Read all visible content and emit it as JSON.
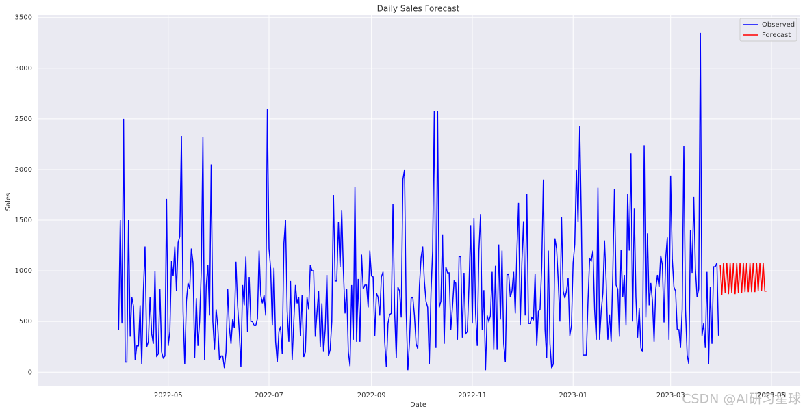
{
  "chart_data": {
    "type": "line",
    "title": "Daily Sales Forecast",
    "x_label": "Date",
    "y_label": "Sales",
    "xlim": [
      -49,
      412
    ],
    "ylim": [
      -140,
      3525
    ],
    "grid": true,
    "legend": "upper right",
    "xticks": [
      {
        "value": 30,
        "label": "2022-05"
      },
      {
        "value": 91,
        "label": "2022-07"
      },
      {
        "value": 153,
        "label": "2022-09"
      },
      {
        "value": 214,
        "label": "2022-11"
      },
      {
        "value": 275,
        "label": "2023-01"
      },
      {
        "value": 334,
        "label": "2023-03"
      },
      {
        "value": 395,
        "label": "2023-05"
      }
    ],
    "yticks": [
      0,
      500,
      1000,
      1500,
      2000,
      2500,
      3000,
      3500
    ],
    "series": [
      {
        "name": "Observed",
        "color": "#0000ff",
        "x": [
          0,
          1,
          2,
          3,
          4,
          5,
          6,
          7,
          8,
          9,
          10,
          11,
          12,
          13,
          14,
          15,
          16,
          17,
          18,
          19,
          20,
          21,
          22,
          23,
          24,
          25,
          26,
          27,
          28,
          29,
          30,
          31,
          32,
          33,
          34,
          35,
          36,
          37,
          38,
          39,
          40,
          41,
          42,
          43,
          44,
          45,
          46,
          47,
          48,
          49,
          50,
          51,
          52,
          53,
          54,
          55,
          56,
          57,
          58,
          59,
          60,
          61,
          62,
          63,
          64,
          65,
          66,
          67,
          68,
          69,
          70,
          71,
          72,
          73,
          74,
          75,
          76,
          77,
          78,
          79,
          80,
          81,
          82,
          83,
          84,
          85,
          86,
          87,
          88,
          89,
          90,
          91,
          92,
          93,
          94,
          95,
          96,
          97,
          98,
          99,
          100,
          101,
          102,
          103,
          104,
          105,
          106,
          107,
          108,
          109,
          110,
          111,
          112,
          113,
          114,
          115,
          116,
          117,
          118,
          119,
          120,
          121,
          122,
          123,
          124,
          125,
          126,
          127,
          128,
          129,
          130,
          131,
          132,
          133,
          134,
          135,
          136,
          137,
          138,
          139,
          140,
          141,
          142,
          143,
          144,
          145,
          146,
          147,
          148,
          149,
          150,
          151,
          152,
          153,
          154,
          155,
          156,
          157,
          158,
          159,
          160,
          161,
          162,
          163,
          164,
          165,
          166,
          167,
          168,
          169,
          170,
          171,
          172,
          173,
          174,
          175,
          176,
          177,
          178,
          179,
          180,
          181,
          182,
          183,
          184,
          185,
          186,
          187,
          188,
          189,
          190,
          191,
          192,
          193,
          194,
          195,
          196,
          197,
          198,
          199,
          200,
          201,
          202,
          203,
          204,
          205,
          206,
          207,
          208,
          209,
          210,
          211,
          212,
          213,
          214,
          215,
          216,
          217,
          218,
          219,
          220,
          221,
          222,
          223,
          224,
          225,
          226,
          227,
          228,
          229,
          230,
          231,
          232,
          233,
          234,
          235,
          236,
          237,
          238,
          239,
          240,
          241,
          242,
          243,
          244,
          245,
          246,
          247,
          248,
          249,
          250,
          251,
          252,
          253,
          254,
          255,
          256,
          257,
          258,
          259,
          260,
          261,
          262,
          263,
          264,
          265,
          266,
          267,
          268,
          269,
          270,
          271,
          272,
          273,
          274,
          275,
          276,
          277,
          278,
          279,
          280,
          281,
          282,
          283,
          284,
          285,
          286,
          287,
          288,
          289,
          290,
          291,
          292,
          293,
          294,
          295,
          296,
          297,
          298,
          299,
          300,
          301,
          302,
          303,
          304,
          305,
          306,
          307,
          308,
          309,
          310,
          311,
          312,
          313,
          314,
          315,
          316,
          317,
          318,
          319,
          320,
          321,
          322,
          323,
          324,
          325,
          326,
          327,
          328,
          329,
          330,
          331,
          332,
          333,
          334,
          335,
          336,
          337,
          338,
          339,
          340,
          341,
          342,
          343,
          344,
          345,
          346,
          347,
          348,
          349,
          350,
          351,
          352,
          353,
          354,
          355,
          356,
          357,
          358,
          359,
          360,
          361,
          362,
          363
        ],
        "values": [
          420,
          1500,
          480,
          2500,
          100,
          100,
          1500,
          350,
          740,
          650,
          120,
          260,
          260,
          660,
          80,
          800,
          1240,
          250,
          300,
          740,
          380,
          280,
          1000,
          160,
          180,
          820,
          200,
          140,
          160,
          1710,
          260,
          400,
          1100,
          950,
          1240,
          800,
          1280,
          1340,
          2330,
          600,
          80,
          700,
          880,
          820,
          1220,
          1080,
          140,
          730,
          260,
          500,
          1000,
          2320,
          120,
          850,
          1060,
          560,
          2050,
          500,
          220,
          620,
          450,
          120,
          160,
          160,
          40,
          200,
          820,
          440,
          280,
          520,
          440,
          1090,
          660,
          400,
          50,
          860,
          660,
          1140,
          400,
          940,
          500,
          500,
          460,
          460,
          530,
          1200,
          760,
          680,
          760,
          560,
          2600,
          1220,
          1020,
          460,
          1030,
          300,
          100,
          400,
          450,
          180,
          1270,
          1500,
          600,
          300,
          900,
          120,
          500,
          860,
          680,
          740,
          360,
          760,
          150,
          200,
          740,
          620,
          1060,
          1000,
          1000,
          350,
          580,
          800,
          250,
          680,
          200,
          420,
          960,
          160,
          220,
          500,
          1750,
          900,
          900,
          1480,
          1040,
          1600,
          1000,
          580,
          820,
          200,
          60,
          860,
          320,
          1830,
          300,
          920,
          300,
          1160,
          820,
          860,
          860,
          640,
          1200,
          950,
          940,
          360,
          780,
          740,
          560,
          940,
          990,
          300,
          50,
          480,
          570,
          580,
          1660,
          600,
          140,
          840,
          800,
          540,
          1900,
          2000,
          600,
          20,
          300,
          730,
          740,
          560,
          280,
          230,
          850,
          1130,
          1240,
          900,
          700,
          640,
          80,
          780,
          1200,
          2580,
          240,
          2580,
          640,
          700,
          1360,
          280,
          1040,
          980,
          980,
          420,
          640,
          900,
          880,
          320,
          1140,
          1140,
          340,
          980,
          380,
          400,
          860,
          1450,
          480,
          1520,
          580,
          260,
          1200,
          1560,
          420,
          810,
          20,
          560,
          500,
          560,
          990,
          220,
          1050,
          220,
          1260,
          520,
          1200,
          280,
          100,
          960,
          970,
          740,
          800,
          990,
          580,
          1200,
          1670,
          460,
          1080,
          1490,
          560,
          1760,
          480,
          480,
          540,
          520,
          970,
          260,
          600,
          620,
          1040,
          1900,
          420,
          140,
          1200,
          280,
          40,
          80,
          1320,
          1220,
          900,
          500,
          1530,
          800,
          730,
          800,
          930,
          360,
          460,
          1080,
          1260,
          2000,
          1480,
          2430,
          1500,
          170,
          170,
          170,
          700,
          1120,
          1100,
          1200,
          620,
          320,
          1820,
          320,
          600,
          780,
          1300,
          900,
          320,
          570,
          300,
          960,
          1810,
          860,
          820,
          350,
          1210,
          740,
          960,
          460,
          1760,
          1200,
          2160,
          500,
          1620,
          740,
          340,
          630,
          240,
          200,
          2240,
          540,
          1370,
          660,
          880,
          700,
          300,
          820,
          960,
          840,
          1150,
          1060,
          490,
          1120,
          1330,
          320,
          1940,
          1120,
          840,
          800,
          420,
          420,
          240,
          620,
          2230,
          620,
          170,
          80,
          1400,
          980,
          1730,
          1020,
          740,
          820,
          3350,
          360,
          480,
          240,
          990,
          80,
          840,
          280,
          1040,
          1040,
          1080,
          360
        ]
      },
      {
        "name": "Forecast",
        "color": "#ff0000",
        "x": [
          364,
          365,
          366,
          367,
          368,
          369,
          370,
          371,
          372,
          373,
          374,
          375,
          376,
          377,
          378,
          379,
          380,
          381,
          382,
          383,
          384,
          385,
          386,
          387,
          388,
          389,
          390,
          391,
          392
        ],
        "values": [
          1060,
          760,
          1080,
          780,
          1080,
          770,
          1080,
          780,
          1080,
          770,
          1080,
          780,
          1080,
          780,
          1080,
          790,
          1080,
          790,
          1080,
          790,
          1080,
          790,
          1080,
          800,
          1080,
          800,
          1080,
          800,
          800
        ]
      }
    ]
  },
  "watermark": "CSDN @AI研习星球"
}
